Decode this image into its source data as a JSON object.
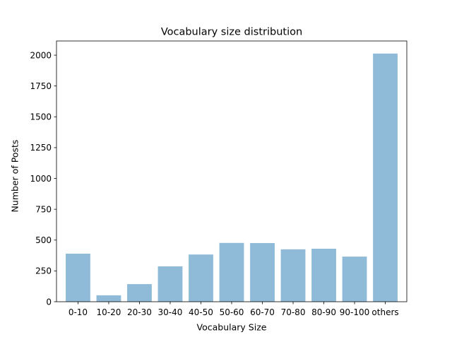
{
  "chart_data": {
    "type": "bar",
    "title": "Vocabulary size distribution",
    "xlabel": "Vocabulary Size",
    "ylabel": "Number of Posts",
    "categories": [
      "0-10",
      "10-20",
      "20-30",
      "30-40",
      "40-50",
      "50-60",
      "60-70",
      "70-80",
      "80-90",
      "90-100",
      "others"
    ],
    "values": [
      390,
      52,
      143,
      287,
      383,
      477,
      476,
      425,
      430,
      366,
      2013
    ],
    "ylim": [
      0,
      2115
    ],
    "yticks": [
      0,
      250,
      500,
      750,
      1000,
      1250,
      1500,
      1750,
      2000
    ],
    "grid": false,
    "legend": "none",
    "bar_color": "#8fbbd9"
  }
}
